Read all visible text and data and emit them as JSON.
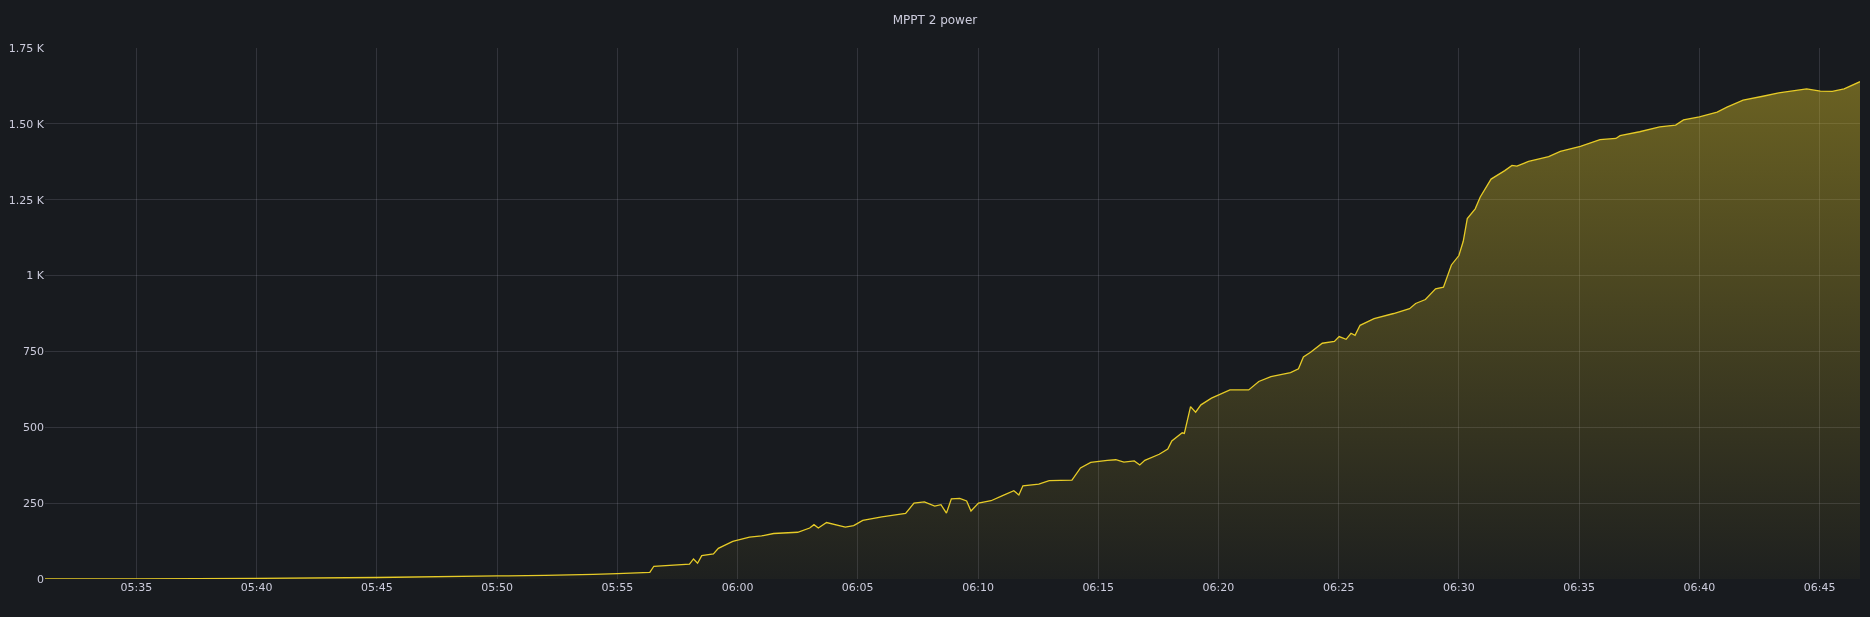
{
  "chart_data": {
    "type": "area",
    "title": "MPPT 2 power",
    "x": [
      5.52,
      5.5833,
      5.6667,
      5.75,
      5.8333,
      5.8667,
      5.9,
      5.9167,
      5.9392,
      5.942,
      5.9667,
      5.9695,
      5.9723,
      5.9752,
      5.9833,
      5.9867,
      5.9967,
      6.0083,
      6.0167,
      6.025,
      6.0417,
      6.05,
      6.053,
      6.056,
      6.0617,
      6.0747,
      6.0805,
      6.0868,
      6.1,
      6.1165,
      6.1223,
      6.1295,
      6.1367,
      6.141,
      6.1448,
      6.1482,
      6.154,
      6.1588,
      6.1618,
      6.167,
      6.1757,
      6.1837,
      6.1915,
      6.195,
      6.1978,
      6.2088,
      6.216,
      6.2318,
      6.2377,
      6.2448,
      6.2563,
      6.2622,
      6.2678,
      6.275,
      6.2788,
      6.2823,
      6.2923,
      6.2982,
      6.301,
      6.3082,
      6.3097,
      6.314,
      6.3175,
      6.3212,
      6.3285,
      6.3413,
      6.3543,
      6.3613,
      6.3697,
      6.3833,
      6.3888,
      6.3922,
      6.3972,
      6.4053,
      6.4137,
      6.417,
      6.4218,
      6.4252,
      6.428,
      6.4315,
      6.4412,
      6.4548,
      6.4658,
      6.47,
      6.4768,
      6.4838,
      6.4893,
      6.4948,
      6.5,
      6.503,
      6.5058,
      6.5113,
      6.5148,
      6.5223,
      6.5318,
      6.5368,
      6.5402,
      6.5483,
      6.5622,
      6.5703,
      6.5842,
      6.5978,
      6.6088,
      6.6117,
      6.6253,
      6.6392,
      6.6502,
      6.6557,
      6.6667,
      6.679,
      6.6858,
      6.697,
      6.7107,
      6.7217,
      6.741,
      6.7505,
      6.7588,
      6.767,
      6.778
    ],
    "series": [
      {
        "color": "#e6cb27",
        "values": [
          0,
          0,
          2,
          5,
          10,
          12,
          15,
          18,
          22,
          42,
          49,
          66,
          52,
          77,
          83,
          101,
          124,
          138,
          142,
          150,
          154,
          168,
          179,
          168,
          186,
          171,
          176,
          193,
          205,
          216,
          250,
          254,
          240,
          245,
          217,
          264,
          266,
          257,
          224,
          250,
          258,
          275,
          291,
          277,
          307,
          313,
          324,
          326,
          366,
          384,
          391,
          393,
          385,
          389,
          376,
          391,
          411,
          428,
          455,
          482,
          480,
          568,
          550,
          574,
          596,
          623,
          623,
          651,
          667,
          680,
          693,
          732,
          747,
          777,
          783,
          799,
          790,
          810,
          803,
          836,
          858,
          875,
          891,
          908,
          921,
          956,
          962,
          1035,
          1066,
          1113,
          1188,
          1220,
          1259,
          1318,
          1346,
          1363,
          1361,
          1376,
          1392,
          1409,
          1426,
          1448,
          1452,
          1461,
          1474,
          1490,
          1496,
          1513,
          1523,
          1539,
          1555,
          1578,
          1591,
          1602,
          1615,
          1608,
          1607,
          1615,
          1639
        ]
      }
    ],
    "xlim": [
      5.52,
      6.778
    ],
    "xticks": [
      {
        "value": 5.5833,
        "label": "05:35"
      },
      {
        "value": 5.6667,
        "label": "05:40"
      },
      {
        "value": 5.75,
        "label": "05:45"
      },
      {
        "value": 5.8333,
        "label": "05:50"
      },
      {
        "value": 5.9167,
        "label": "05:55"
      },
      {
        "value": 6,
        "label": "06:00"
      },
      {
        "value": 6.0833,
        "label": "06:05"
      },
      {
        "value": 6.1667,
        "label": "06:10"
      },
      {
        "value": 6.25,
        "label": "06:15"
      },
      {
        "value": 6.3333,
        "label": "06:20"
      },
      {
        "value": 6.4167,
        "label": "06:25"
      },
      {
        "value": 6.5,
        "label": "06:30"
      },
      {
        "value": 6.5833,
        "label": "06:35"
      },
      {
        "value": 6.6667,
        "label": "06:40"
      },
      {
        "value": 6.75,
        "label": "06:45"
      }
    ],
    "ylim": [
      0,
      1750
    ],
    "yticks": [
      0,
      250,
      500,
      750,
      {
        "value": 1000,
        "label": "1 K"
      },
      {
        "value": 1250,
        "label": "1.25 K"
      },
      {
        "value": 1500,
        "label": "1.50 K"
      },
      {
        "value": 1750,
        "label": "1.75 K"
      }
    ],
    "grid": true,
    "marker": "none",
    "line_style": "solid"
  }
}
